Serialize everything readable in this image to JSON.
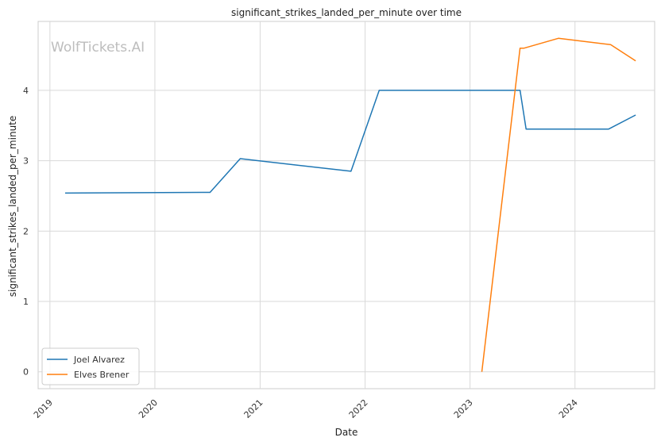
{
  "chart_data": {
    "type": "line",
    "title": "significant_strikes_landed_per_minute over time",
    "xlabel": "Date",
    "ylabel": "significant_strikes_landed_per_minute",
    "watermark": "WolfTickets.AI",
    "x_ticks": [
      "2019",
      "2020",
      "2021",
      "2022",
      "2023",
      "2024"
    ],
    "y_ticks": [
      "0",
      "1",
      "2",
      "3",
      "4"
    ],
    "xlim": [
      "2018-11-21",
      "2024-10-04"
    ],
    "ylim": [
      -0.24,
      4.98
    ],
    "grid": true,
    "legend_position": "lower-left",
    "series": [
      {
        "name": "Joel Alvarez",
        "color": "#1f77b4",
        "points": [
          [
            "2019-02-23",
            2.54
          ],
          [
            "2020-07-11",
            2.55
          ],
          [
            "2020-10-24",
            3.03
          ],
          [
            "2021-11-13",
            2.85
          ],
          [
            "2022-02-19",
            4.0
          ],
          [
            "2023-06-24",
            4.0
          ],
          [
            "2023-07-15",
            3.45
          ],
          [
            "2024-04-27",
            3.45
          ],
          [
            "2024-07-30",
            3.65
          ]
        ]
      },
      {
        "name": "Elves Brener",
        "color": "#ff7f0e",
        "points": [
          [
            "2023-02-11",
            0.0
          ],
          [
            "2023-06-24",
            4.6
          ],
          [
            "2023-07-08",
            4.6
          ],
          [
            "2023-11-04",
            4.74
          ],
          [
            "2024-05-04",
            4.65
          ],
          [
            "2024-07-30",
            4.42
          ]
        ]
      }
    ]
  }
}
